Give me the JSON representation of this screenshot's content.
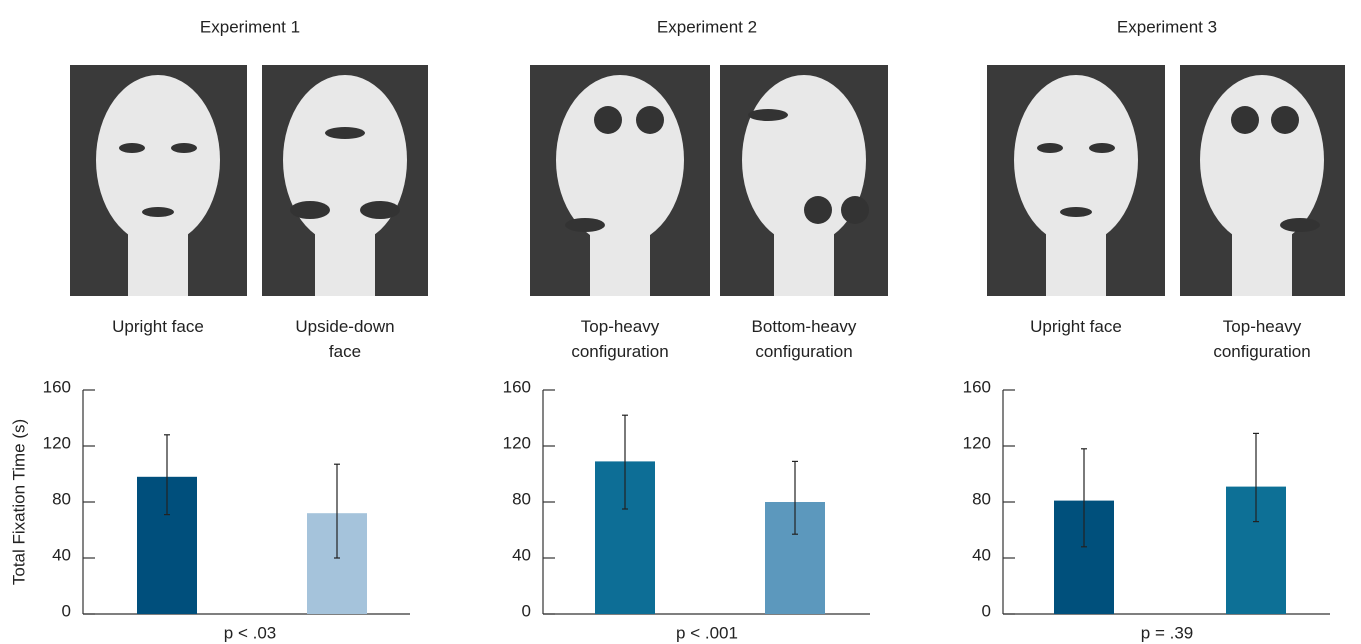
{
  "chart_data": [
    {
      "type": "bar",
      "title": "Experiment 1",
      "xlabel": "p < .03",
      "ylabel": "Total Fixation Time (s)",
      "categories": [
        "Upright face",
        "Upside-down face"
      ],
      "values": [
        98,
        72
      ],
      "error_bars": [
        [
          71,
          128
        ],
        [
          40,
          107
        ]
      ],
      "colors": [
        "#004f7c",
        "#a5c3db"
      ],
      "ylim": [
        0,
        160
      ],
      "yticks": [
        0,
        40,
        80,
        120,
        160
      ]
    },
    {
      "type": "bar",
      "title": "Experiment 2",
      "xlabel": "p < .001",
      "categories": [
        "Top-heavy configuration",
        "Bottom-heavy configuration"
      ],
      "values": [
        109,
        80
      ],
      "error_bars": [
        [
          75,
          142
        ],
        [
          57,
          109
        ]
      ],
      "colors": [
        "#0d6e96",
        "#5c98bd"
      ],
      "ylim": [
        0,
        160
      ],
      "yticks": [
        0,
        40,
        80,
        120,
        160
      ]
    },
    {
      "type": "bar",
      "title": "Experiment 3",
      "xlabel": "p = .39",
      "categories": [
        "Upright face",
        "Top-heavy configuration"
      ],
      "values": [
        81,
        91
      ],
      "error_bars": [
        [
          48,
          118
        ],
        [
          66,
          129
        ]
      ],
      "colors": [
        "#00507c",
        "#0d7096"
      ],
      "ylim": [
        0,
        160
      ],
      "yticks": [
        0,
        40,
        80,
        120,
        160
      ]
    }
  ]
}
